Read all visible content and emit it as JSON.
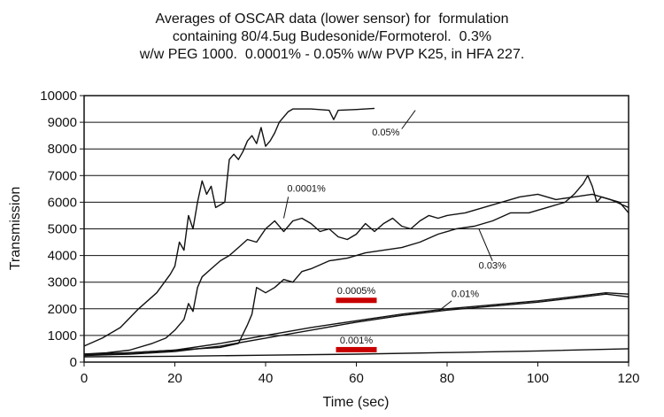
{
  "chart_data": {
    "type": "line",
    "title_lines": [
      "Averages of OSCAR data (lower sensor) for  formulation",
      "containing 80/4.5ug Budesonide/Formoterol.  0.3%",
      "w/w PEG 1000.  0.0001% - 0.05% w/w PVP K25, in HFA 227."
    ],
    "xlabel": "Time (sec)",
    "ylabel": "Transmission",
    "xlim": [
      0,
      120
    ],
    "ylim": [
      0,
      10000
    ],
    "xticks": [
      0,
      20,
      40,
      60,
      80,
      100,
      120
    ],
    "yticks": [
      0,
      1000,
      2000,
      3000,
      4000,
      5000,
      6000,
      7000,
      8000,
      9000,
      10000
    ],
    "grid": "horizontal",
    "highlight_color": "#c80000",
    "series": [
      {
        "name": "0.05%",
        "label": "0.05%",
        "highlighted": false,
        "x": [
          0,
          4,
          8,
          12,
          16,
          19,
          20,
          21,
          22,
          23,
          24,
          25,
          26,
          27,
          28,
          29,
          30,
          31,
          32,
          33,
          34,
          35,
          36,
          37,
          38,
          39,
          40,
          41,
          42,
          43,
          44,
          45,
          46,
          50,
          54,
          55,
          56,
          60,
          64
        ],
        "y": [
          600,
          900,
          1300,
          2000,
          2600,
          3300,
          3600,
          4500,
          4200,
          5500,
          5000,
          6000,
          6800,
          6300,
          6600,
          5800,
          5900,
          6000,
          7600,
          7800,
          7600,
          7900,
          8300,
          8500,
          8200,
          8800,
          8100,
          8300,
          8600,
          9000,
          9200,
          9400,
          9500,
          9500,
          9450,
          9100,
          9450,
          9480,
          9520
        ]
      },
      {
        "name": "0.0001%",
        "label": "0.0001%",
        "highlighted": false,
        "x": [
          0,
          5,
          10,
          15,
          18,
          20,
          22,
          23,
          24,
          25,
          26,
          28,
          30,
          32,
          34,
          36,
          38,
          40,
          42,
          44,
          46,
          48,
          50,
          52,
          54,
          56,
          58,
          60,
          62,
          64,
          66,
          68,
          70,
          72,
          74,
          76,
          78,
          80,
          84,
          88,
          92,
          96,
          100,
          104,
          108,
          112,
          116,
          120
        ],
        "y": [
          300,
          350,
          450,
          700,
          900,
          1200,
          1600,
          2200,
          1900,
          2800,
          3200,
          3500,
          3800,
          4000,
          4300,
          4600,
          4500,
          5000,
          5300,
          4900,
          5300,
          5400,
          5200,
          4900,
          5000,
          4700,
          4600,
          4800,
          5200,
          4900,
          5200,
          5400,
          5100,
          5000,
          5300,
          5500,
          5400,
          5500,
          5600,
          5800,
          6000,
          6200,
          6300,
          6100,
          6200,
          6300,
          6100,
          5800
        ]
      },
      {
        "name": "0.03%",
        "label": "0.03%",
        "highlighted": false,
        "x": [
          0,
          5,
          10,
          15,
          20,
          25,
          30,
          34,
          36,
          37,
          38,
          40,
          42,
          44,
          46,
          48,
          50,
          54,
          58,
          62,
          66,
          70,
          74,
          78,
          82,
          86,
          90,
          94,
          98,
          102,
          106,
          108,
          110,
          111,
          112,
          113,
          114,
          116,
          118,
          120
        ],
        "y": [
          250,
          300,
          350,
          400,
          450,
          500,
          550,
          700,
          1400,
          1800,
          2800,
          2600,
          2800,
          3100,
          3000,
          3400,
          3500,
          3800,
          3900,
          4100,
          4200,
          4300,
          4500,
          4800,
          5000,
          5100,
          5300,
          5600,
          5600,
          5800,
          6000,
          6300,
          6700,
          7000,
          6600,
          6000,
          6200,
          6100,
          6000,
          5600
        ]
      },
      {
        "name": "0.01%",
        "label": "0.01%",
        "highlighted": false,
        "x": [
          0,
          10,
          20,
          30,
          40,
          50,
          60,
          70,
          80,
          90,
          100,
          105,
          110,
          115,
          120
        ],
        "y": [
          300,
          350,
          450,
          700,
          1000,
          1300,
          1550,
          1800,
          2000,
          2150,
          2300,
          2400,
          2500,
          2600,
          2550
        ]
      },
      {
        "name": "0.0005%",
        "label": "0.0005%",
        "highlighted": true,
        "x": [
          0,
          10,
          20,
          30,
          40,
          50,
          60,
          70,
          80,
          90,
          100,
          105,
          110,
          115,
          120
        ],
        "y": [
          250,
          300,
          400,
          600,
          900,
          1200,
          1500,
          1750,
          1950,
          2100,
          2250,
          2350,
          2450,
          2550,
          2450
        ]
      },
      {
        "name": "0.001%",
        "label": "0.001%",
        "highlighted": true,
        "x": [
          0,
          20,
          40,
          60,
          80,
          100,
          120
        ],
        "y": [
          200,
          220,
          260,
          300,
          360,
          420,
          500
        ]
      }
    ]
  }
}
